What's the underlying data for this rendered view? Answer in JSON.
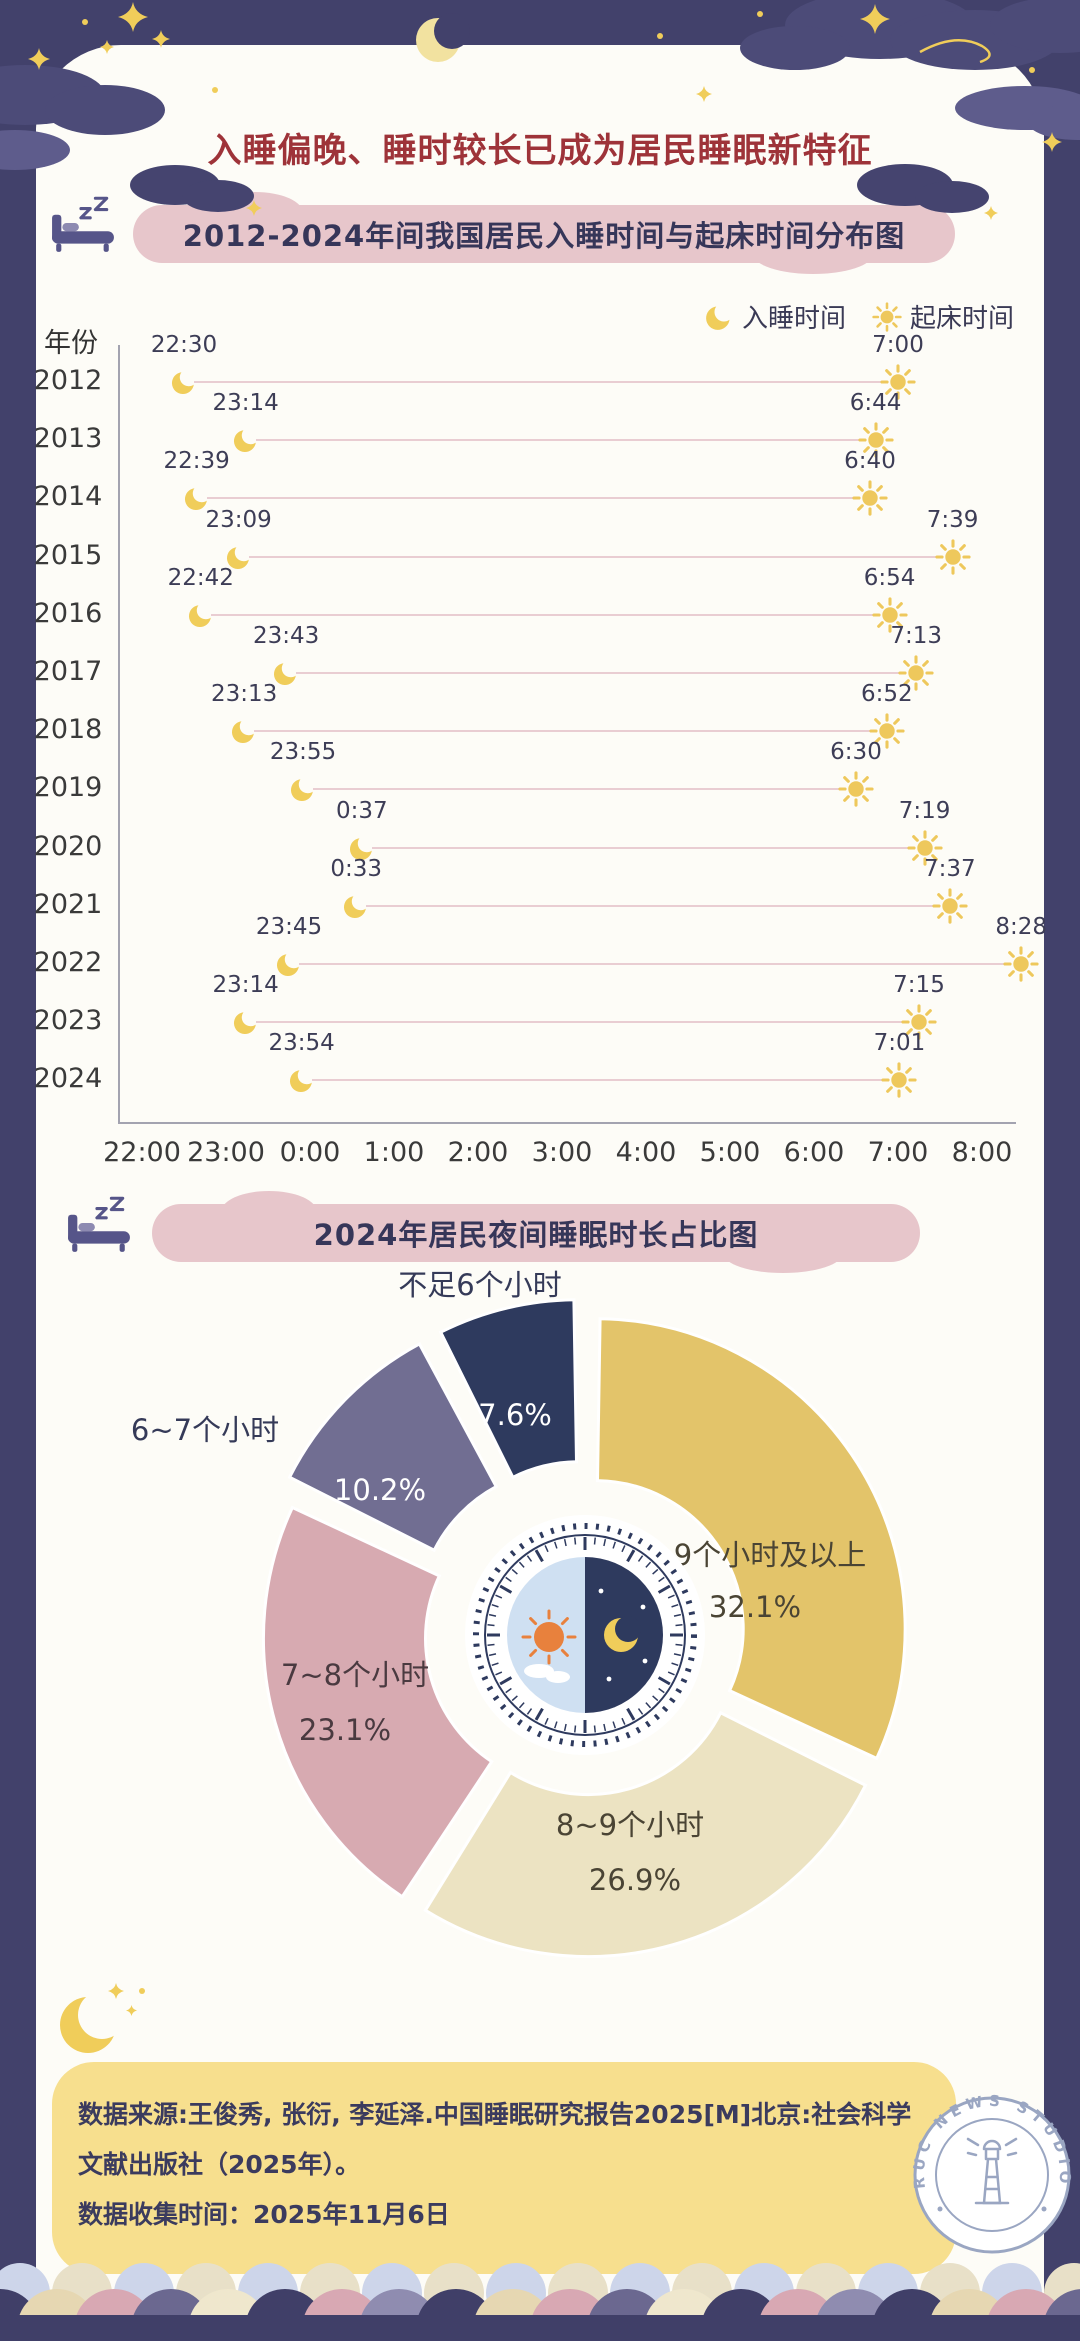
{
  "header": {
    "title": "入睡偏晚、睡时较长已成为居民睡眠新特征"
  },
  "chart_data": [
    {
      "type": "dumbbell",
      "title": "2012-2024年间我国居民入睡时间与起床时间分布图",
      "ylabel": "年份",
      "xlabel": "",
      "x_ticks": [
        "22:00",
        "23:00",
        "0:00",
        "1:00",
        "2:00",
        "3:00",
        "4:00",
        "5:00",
        "6:00",
        "7:00",
        "8:00"
      ],
      "legend": [
        {
          "icon": "moon-icon",
          "label": "入睡时间"
        },
        {
          "icon": "sun-icon",
          "label": "起床时间"
        }
      ],
      "rows": [
        {
          "year": "2012",
          "sleep": "22:30",
          "wake": "7:00"
        },
        {
          "year": "2013",
          "sleep": "23:14",
          "wake": "6:44"
        },
        {
          "year": "2014",
          "sleep": "22:39",
          "wake": "6:40"
        },
        {
          "year": "2015",
          "sleep": "23:09",
          "wake": "7:39"
        },
        {
          "year": "2016",
          "sleep": "22:42",
          "wake": "6:54"
        },
        {
          "year": "2017",
          "sleep": "23:43",
          "wake": "7:13"
        },
        {
          "year": "2018",
          "sleep": "23:13",
          "wake": "6:52"
        },
        {
          "year": "2019",
          "sleep": "23:55",
          "wake": "6:30"
        },
        {
          "year": "2020",
          "sleep": "0:37",
          "wake": "7:19"
        },
        {
          "year": "2021",
          "sleep": "0:33",
          "wake": "7:37"
        },
        {
          "year": "2022",
          "sleep": "23:45",
          "wake": "8:28"
        },
        {
          "year": "2023",
          "sleep": "23:14",
          "wake": "7:15"
        },
        {
          "year": "2024",
          "sleep": "23:54",
          "wake": "7:01"
        }
      ]
    },
    {
      "type": "pie",
      "title": "2024年居民夜间睡眠时长占比图",
      "unit": "%",
      "slices": [
        {
          "label": "9个小时及以上",
          "value": 32.1,
          "color": "#e3c46a",
          "label_color": "#4a4434",
          "pct_color": "#4a4434",
          "explode": 12
        },
        {
          "label": "8~9个小时",
          "value": 26.9,
          "color": "#ece3c2",
          "label_color": "#4a4434",
          "pct_color": "#4a4434",
          "explode": 12
        },
        {
          "label": "7~8个小时",
          "value": 23.1,
          "color": "#d7aab1",
          "label_color": "#4a3a40",
          "pct_color": "#4a3a40",
          "explode": 12
        },
        {
          "label": "6~7个小时",
          "value": 10.2,
          "color": "#716e92",
          "label_color": "#353a58",
          "pct_color": "#ffffff",
          "explode": 26
        },
        {
          "label": "不足6个小时",
          "value": 7.6,
          "color": "#2e3a5e",
          "label_color": "#353a58",
          "pct_color": "#ffffff",
          "explode": 26
        }
      ]
    }
  ],
  "footer": {
    "lines": [
      "数据来源:王俊秀, 张衍, 李延泽.中国睡眠研究报告2025[M]北京:社会科学",
      "文献出版社（2025年）。",
      "数据收集时间：2025年11月6日"
    ]
  },
  "stamp": {
    "text": "RUC NEWS STUDIO"
  },
  "theme": {
    "background_navy": "#42416b",
    "card_white": "#fdfcf7",
    "title_red": "#9e3339",
    "banner_pink": "#e7c6cb",
    "text_navy": "#363659",
    "icon_yellow": "#f0cd5a",
    "connector_pink": "#e9cdd2",
    "footer_yellow": "#f7df8e",
    "stamp_blue": "#9aa6c2"
  }
}
